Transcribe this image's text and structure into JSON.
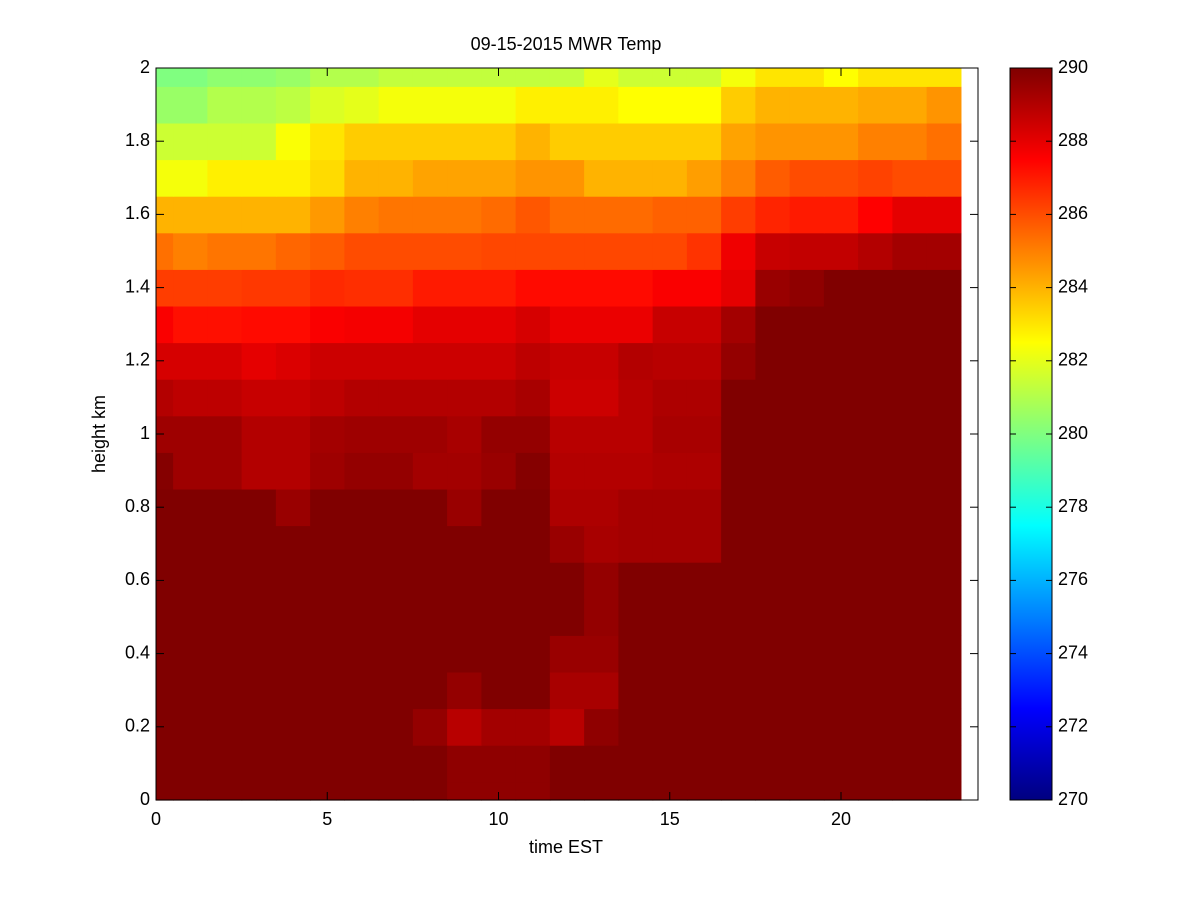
{
  "chart_data": {
    "type": "heatmap",
    "title": "09-15-2015 MWR Temp",
    "x_label": "time EST",
    "y_label": "height km",
    "x": [
      0,
      1,
      2,
      3,
      4,
      5,
      6,
      7,
      8,
      9,
      10,
      11,
      12,
      13,
      14,
      15,
      16,
      17,
      18,
      19,
      20,
      21,
      22,
      23
    ],
    "y": [
      0,
      0.1,
      0.2,
      0.3,
      0.4,
      0.5,
      0.6,
      0.7,
      0.8,
      0.9,
      1,
      1.1,
      1.2,
      1.3,
      1.4,
      1.5,
      1.6,
      1.7,
      1.8,
      1.9,
      2
    ],
    "z": [
      [
        290.2,
        290.2,
        290.2,
        290.2,
        290.2,
        290.2,
        290.2,
        290.2,
        290.2,
        289.7,
        289.7,
        289.7,
        290.2,
        290.2,
        290.2,
        290.2,
        290.2,
        290.2,
        290.2,
        290.2,
        290.2,
        290.2,
        290.2,
        290.2
      ],
      [
        290.2,
        290.2,
        290.2,
        290.2,
        290.2,
        290.2,
        290.2,
        290.2,
        290.2,
        289.7,
        289.7,
        289.7,
        290.2,
        290.2,
        290.2,
        290.2,
        290.2,
        290.2,
        290.2,
        290.2,
        290.2,
        290.2,
        290.2,
        290.2
      ],
      [
        290.2,
        290.2,
        290.2,
        290.2,
        290.2,
        290.2,
        290.2,
        290.2,
        289.6,
        288.9,
        289.3,
        289.3,
        288.9,
        289.7,
        290.2,
        290.2,
        290.2,
        290.2,
        290.2,
        290.2,
        290.2,
        290.2,
        290.2,
        290.2
      ],
      [
        290.2,
        290.2,
        290.2,
        290.2,
        290.2,
        290.2,
        290.2,
        290.2,
        290.2,
        289.6,
        290.0,
        290.0,
        289.2,
        289.2,
        290.2,
        290.2,
        290.2,
        290.2,
        290.2,
        290.2,
        290.2,
        290.2,
        290.2,
        290.2
      ],
      [
        290.2,
        290.2,
        290.2,
        290.2,
        290.2,
        290.2,
        290.2,
        290.2,
        290.2,
        290.2,
        290.2,
        290.2,
        289.5,
        289.5,
        290.2,
        290.2,
        290.2,
        290.2,
        290.2,
        290.2,
        290.2,
        290.2,
        290.2,
        290.2
      ],
      [
        290.2,
        290.2,
        290.2,
        290.2,
        290.2,
        290.2,
        290.2,
        290.2,
        290.2,
        290.2,
        290.2,
        290.2,
        290.0,
        289.6,
        290.2,
        290.2,
        290.2,
        290.2,
        290.2,
        290.2,
        290.2,
        290.2,
        290.2,
        290.2
      ],
      [
        290.2,
        290.2,
        290.2,
        290.2,
        290.2,
        290.2,
        290.2,
        290.2,
        290.2,
        290.2,
        290.2,
        290.2,
        290.2,
        289.6,
        290.2,
        290.2,
        290.2,
        290.2,
        290.2,
        290.2,
        290.2,
        290.2,
        290.2,
        290.2
      ],
      [
        290.2,
        290.2,
        290.2,
        290.2,
        290.2,
        290.2,
        290.2,
        290.2,
        290.2,
        290.2,
        290.2,
        290.2,
        289.5,
        289.2,
        289.3,
        289.3,
        289.3,
        290.2,
        290.2,
        290.2,
        290.2,
        290.2,
        290.2,
        290.2
      ],
      [
        290.0,
        290.0,
        290.0,
        290.0,
        289.5,
        290.0,
        290.0,
        290.0,
        290.0,
        289.5,
        290.0,
        290.0,
        289.1,
        289.1,
        289.3,
        289.3,
        289.3,
        290.5,
        290.5,
        290.5,
        290.5,
        290.5,
        290.5,
        290.5
      ],
      [
        289.9,
        289.4,
        289.4,
        289.0,
        289.0,
        289.4,
        289.6,
        289.6,
        289.3,
        289.3,
        289.5,
        289.9,
        289.0,
        289.0,
        289.0,
        289.1,
        289.1,
        290.5,
        290.5,
        290.5,
        290.5,
        290.5,
        290.5,
        290.5
      ],
      [
        289.4,
        289.4,
        289.4,
        289.0,
        289.0,
        289.3,
        289.4,
        289.4,
        289.4,
        289.2,
        289.6,
        289.6,
        288.9,
        288.9,
        288.9,
        289.2,
        289.2,
        290.5,
        290.5,
        290.5,
        290.5,
        290.5,
        290.5,
        290.5
      ],
      [
        289.0,
        288.8,
        288.8,
        288.6,
        288.6,
        288.8,
        289.0,
        289.0,
        289.0,
        289.0,
        289.0,
        289.2,
        288.5,
        288.5,
        288.9,
        289.1,
        289.1,
        290.5,
        290.5,
        290.5,
        290.5,
        290.5,
        290.5,
        290.5
      ],
      [
        288.3,
        288.3,
        288.3,
        288.0,
        288.2,
        288.5,
        288.5,
        288.5,
        288.5,
        288.5,
        288.5,
        288.8,
        288.6,
        288.6,
        289.0,
        288.9,
        288.9,
        289.6,
        290.5,
        290.5,
        290.5,
        290.5,
        290.5,
        290.5
      ],
      [
        287.6,
        287.2,
        287.2,
        287.3,
        287.3,
        287.6,
        287.7,
        287.7,
        288.0,
        288.0,
        288.0,
        288.3,
        287.9,
        287.9,
        287.9,
        288.6,
        288.6,
        289.3,
        290.5,
        290.5,
        290.5,
        290.5,
        290.5,
        290.5
      ],
      [
        286.3,
        286.3,
        286.3,
        286.4,
        286.4,
        286.7,
        286.6,
        286.6,
        287.0,
        287.0,
        287.0,
        287.3,
        287.3,
        287.3,
        287.3,
        287.6,
        287.6,
        288.0,
        289.5,
        289.7,
        290.0,
        290.2,
        290.5,
        290.5
      ],
      [
        285.3,
        285.0,
        285.2,
        285.2,
        285.5,
        285.7,
        286.0,
        286.0,
        286.0,
        286.0,
        286.1,
        286.1,
        286.1,
        286.1,
        286.1,
        286.1,
        286.5,
        287.8,
        288.6,
        288.7,
        288.7,
        289.0,
        289.3,
        289.3
      ],
      [
        284.0,
        284.0,
        284.0,
        284.0,
        284.0,
        284.5,
        285.0,
        285.2,
        285.2,
        285.2,
        285.4,
        285.8,
        285.4,
        285.4,
        285.4,
        285.6,
        285.6,
        286.3,
        286.8,
        287.0,
        287.0,
        287.5,
        288.0,
        288.0
      ],
      [
        282.3,
        282.3,
        282.8,
        282.8,
        282.8,
        283.2,
        284.0,
        284.0,
        284.3,
        284.3,
        284.3,
        284.6,
        284.6,
        284.0,
        284.0,
        284.0,
        284.4,
        285.0,
        285.7,
        286.0,
        286.0,
        286.2,
        286.0,
        286.0
      ],
      [
        281.5,
        281.5,
        281.5,
        281.5,
        282.4,
        283.0,
        283.5,
        283.5,
        283.5,
        283.5,
        283.5,
        284.0,
        283.5,
        283.5,
        283.5,
        283.5,
        283.5,
        284.3,
        284.6,
        284.6,
        284.6,
        285.0,
        285.0,
        285.3
      ],
      [
        280.5,
        280.5,
        281.0,
        281.0,
        281.2,
        281.8,
        282.0,
        282.3,
        282.3,
        282.3,
        282.3,
        282.8,
        282.8,
        282.8,
        282.5,
        282.5,
        282.5,
        283.5,
        284.0,
        284.0,
        284.0,
        284.2,
        284.2,
        284.6
      ],
      [
        280.0,
        280.0,
        280.3,
        280.3,
        280.5,
        281.0,
        281.0,
        281.3,
        281.3,
        281.3,
        281.3,
        281.3,
        281.3,
        282.0,
        281.5,
        281.5,
        281.5,
        282.3,
        283.0,
        283.0,
        282.5,
        283.0,
        283.0,
        283.0
      ]
    ],
    "xlim": [
      0,
      24
    ],
    "ylim": [
      0,
      2
    ],
    "xticks": [
      0,
      5,
      10,
      15,
      20
    ],
    "yticks": [
      0,
      0.2,
      0.4,
      0.6,
      0.8,
      1,
      1.2,
      1.4,
      1.6,
      1.8,
      2
    ],
    "colormap": "jet",
    "zlim": [
      270,
      290
    ],
    "colorbar_ticks": [
      270,
      272,
      274,
      276,
      278,
      280,
      282,
      284,
      286,
      288,
      290
    ]
  }
}
